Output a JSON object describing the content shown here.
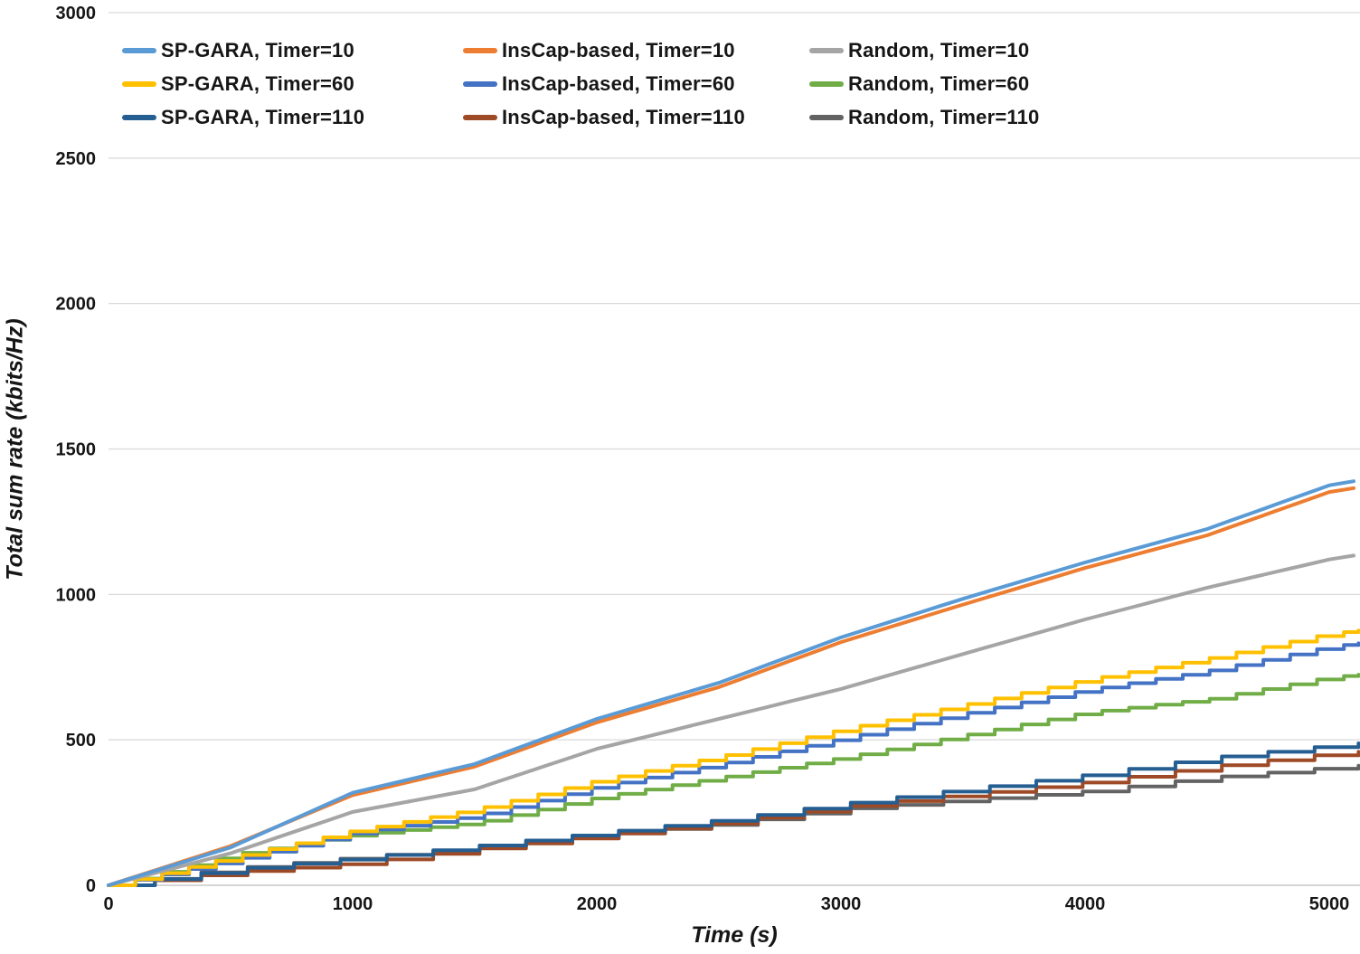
{
  "figure": {
    "background": "#ffffff",
    "axis_text_color": "#161616",
    "gridline_color": "#d9d9d9",
    "baseline_color": "#c8c8c8"
  },
  "chart_data": {
    "type": "line",
    "title": "",
    "xlabel": "Time (s)",
    "ylabel": "Total sum rate (kbits/Hz)",
    "xlim": [
      0,
      5120
    ],
    "ylim": [
      0,
      3000
    ],
    "x_ticks": [
      0,
      1000,
      2000,
      3000,
      4000,
      5000
    ],
    "y_ticks": [
      0,
      500,
      1000,
      1500,
      2000,
      2500,
      3000
    ],
    "grid": "horizontal-only",
    "legend_position": "top-left-inside",
    "legend_columns": 3,
    "x": [
      0,
      500,
      1000,
      1500,
      2000,
      2500,
      3000,
      3500,
      4000,
      4500,
      5000,
      5120
    ],
    "series": [
      {
        "name": "SP-GARA, Timer=10",
        "color": "#5B9BD5",
        "timer": 10,
        "step_s": null,
        "values": [
          0,
          130,
          318,
          417,
          572,
          696,
          852,
          985,
          1110,
          1225,
          1375,
          1392
        ]
      },
      {
        "name": "InsCap-based, Timer=10",
        "color": "#ED7D31",
        "timer": 10,
        "step_s": null,
        "values": [
          0,
          135,
          310,
          408,
          560,
          681,
          836,
          965,
          1091,
          1203,
          1352,
          1368
        ]
      },
      {
        "name": "Random, Timer=10",
        "color": "#A5A5A5",
        "timer": 10,
        "step_s": null,
        "values": [
          0,
          110,
          252,
          330,
          469,
          572,
          675,
          795,
          914,
          1023,
          1120,
          1136
        ]
      },
      {
        "name": "SP-GARA, Timer=60",
        "color": "#FFC000",
        "timer": 60,
        "step_s": 110,
        "values": [
          0,
          95,
          187,
          261,
          360,
          442,
          535,
          620,
          706,
          780,
          865,
          876
        ]
      },
      {
        "name": "InsCap-based, Timer=60",
        "color": "#4472C4",
        "timer": 60,
        "step_s": 110,
        "values": [
          0,
          85,
          180,
          239,
          339,
          417,
          504,
          590,
          671,
          737,
          820,
          832
        ]
      },
      {
        "name": "Random, Timer=60",
        "color": "#70AD47",
        "timer": 60,
        "step_s": 110,
        "values": [
          0,
          105,
          172,
          215,
          302,
          370,
          438,
          515,
          594,
          640,
          715,
          724
        ]
      },
      {
        "name": "SP-GARA, Timer=110",
        "color": "#255E91",
        "timer": 110,
        "step_s": 190,
        "values": [
          0,
          55,
          92,
          135,
          180,
          224,
          280,
          330,
          379,
          438,
          480,
          488
        ]
      },
      {
        "name": "InsCap-based, Timer=110",
        "color": "#9E4A26",
        "timer": 110,
        "step_s": 190,
        "values": [
          0,
          45,
          75,
          125,
          170,
          215,
          270,
          312,
          354,
          407,
          452,
          459
        ]
      },
      {
        "name": "Random, Timer=110",
        "color": "#636363",
        "timer": 110,
        "step_s": 190,
        "values": [
          0,
          58,
          95,
          131,
          172,
          210,
          262,
          293,
          323,
          370,
          405,
          411
        ]
      }
    ]
  }
}
